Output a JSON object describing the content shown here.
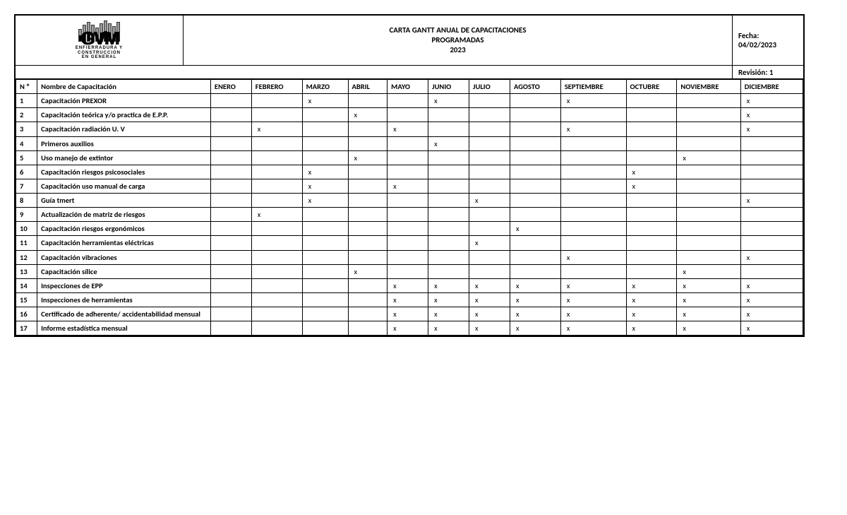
{
  "header": {
    "logo": {
      "main_text": "GVM",
      "sub_line1": "ENFIERRADURA Y",
      "sub_line2": "CONSTRUCCION",
      "sub_line3": "EN GENERAL"
    },
    "title_line1": "CARTA GANTT ANUAL DE CAPACITACIONES",
    "title_line2": "PROGRAMADAS",
    "title_line3": "2023",
    "date_label": "Fecha:",
    "date_value": "04/02/2023",
    "revision": "Revisión: 1"
  },
  "table": {
    "marker": "x",
    "columns": {
      "num": "N º",
      "name": "Nombre de Capacitación",
      "months": [
        "ENERO",
        "FEBRERO",
        "MARZO",
        "ABRIL",
        "MAYO",
        "JUNIO",
        "JULIO",
        "AGOSTO",
        "SEPTIEMBRE",
        "OCTUBRE",
        "NOVIEMBRE",
        "DICIEMBRE"
      ]
    },
    "rows": [
      {
        "n": "1",
        "name": "Capacitación PREXOR",
        "marks": [
          0,
          0,
          1,
          0,
          0,
          1,
          0,
          0,
          1,
          0,
          0,
          1
        ]
      },
      {
        "n": "2",
        "name": "Capacitación teórica y/o practica de E.P.P.",
        "marks": [
          0,
          0,
          0,
          1,
          0,
          0,
          0,
          0,
          0,
          0,
          0,
          1
        ]
      },
      {
        "n": "3",
        "name": "Capacitación radiación U. V",
        "marks": [
          0,
          1,
          0,
          0,
          1,
          0,
          0,
          0,
          1,
          0,
          0,
          1
        ]
      },
      {
        "n": "4",
        "name": "Primeros auxilios",
        "marks": [
          0,
          0,
          0,
          0,
          0,
          1,
          0,
          0,
          0,
          0,
          0,
          0
        ]
      },
      {
        "n": "5",
        "name": "Uso manejo de extintor",
        "marks": [
          0,
          0,
          0,
          1,
          0,
          0,
          0,
          0,
          0,
          0,
          1,
          0
        ]
      },
      {
        "n": "6",
        "name": "Capacitación riesgos psicosociales",
        "marks": [
          0,
          0,
          1,
          0,
          0,
          0,
          0,
          0,
          0,
          1,
          0,
          0
        ]
      },
      {
        "n": "7",
        "name": "Capacitación uso manual de carga",
        "marks": [
          0,
          0,
          1,
          0,
          1,
          0,
          0,
          0,
          0,
          1,
          0,
          0
        ]
      },
      {
        "n": "8",
        "name": "Guía tmert",
        "marks": [
          0,
          0,
          1,
          0,
          0,
          0,
          1,
          0,
          0,
          0,
          0,
          1
        ]
      },
      {
        "n": "9",
        "name": "Actualización de matriz de riesgos",
        "marks": [
          0,
          1,
          0,
          0,
          0,
          0,
          0,
          0,
          0,
          0,
          0,
          0
        ]
      },
      {
        "n": "10",
        "name": "Capacitación riesgos ergonómicos",
        "marks": [
          0,
          0,
          0,
          0,
          0,
          0,
          0,
          1,
          0,
          0,
          0,
          0
        ]
      },
      {
        "n": "11",
        "name": "Capacitación herramientas eléctricas",
        "marks": [
          0,
          0,
          0,
          0,
          0,
          0,
          1,
          0,
          0,
          0,
          0,
          0
        ]
      },
      {
        "n": "12",
        "name": "Capacitación vibraciones",
        "marks": [
          0,
          0,
          0,
          0,
          0,
          0,
          0,
          0,
          1,
          0,
          0,
          1
        ]
      },
      {
        "n": "13",
        "name": "Capacitación sílice",
        "marks": [
          0,
          0,
          0,
          1,
          0,
          0,
          0,
          0,
          0,
          0,
          1,
          0
        ]
      },
      {
        "n": "14",
        "name": "Inspecciones de EPP",
        "marks": [
          0,
          0,
          0,
          0,
          1,
          1,
          1,
          1,
          1,
          1,
          1,
          1
        ]
      },
      {
        "n": "15",
        "name": "Inspecciones de herramientas",
        "marks": [
          0,
          0,
          0,
          0,
          1,
          1,
          1,
          1,
          1,
          1,
          1,
          1
        ]
      },
      {
        "n": "16",
        "name": "Certificado de adherente/ accidentabilidad mensual",
        "marks": [
          0,
          0,
          0,
          0,
          1,
          1,
          1,
          1,
          1,
          1,
          1,
          1
        ]
      },
      {
        "n": "17",
        "name": "Informe estadística mensual",
        "marks": [
          0,
          0,
          0,
          0,
          1,
          1,
          1,
          1,
          1,
          1,
          1,
          1
        ]
      }
    ]
  },
  "styling": {
    "border_color": "#000000",
    "background": "#ffffff",
    "font_family": "Calibri",
    "header_font_size": 11,
    "cell_font_size": 10.5,
    "col_widths": {
      "num": 26,
      "name": 212
    }
  }
}
